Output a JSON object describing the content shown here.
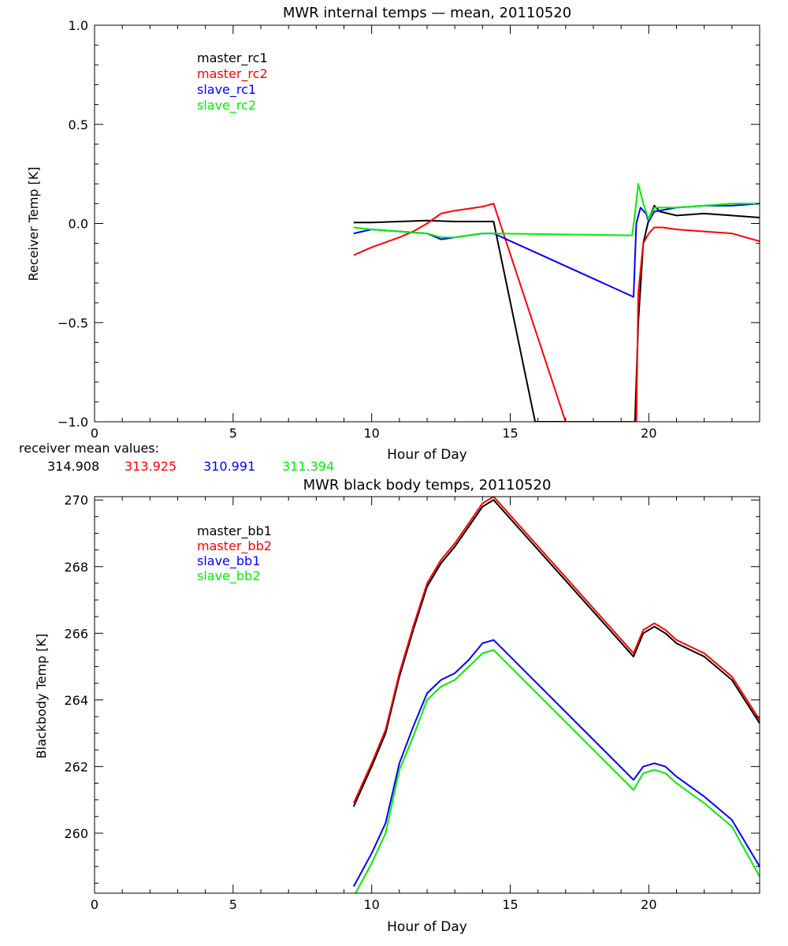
{
  "chart_data": [
    {
      "type": "line",
      "title": "MWR internal temps — mean, 20110520",
      "xlabel": "Hour of Day",
      "ylabel": "Receiver Temp [K]",
      "xlim": [
        0,
        24
      ],
      "ylim": [
        -1.0,
        1.0
      ],
      "x_ticks": [
        0,
        5,
        10,
        15,
        20
      ],
      "x_tick_labels": [
        "0",
        "5",
        "10",
        "15",
        "20"
      ],
      "y_ticks": [
        -1.0,
        -0.5,
        0.0,
        0.5,
        1.0
      ],
      "y_tick_labels": [
        "−1.0",
        "−0.5",
        "0.0",
        "0.5",
        "1.0"
      ],
      "grid": false,
      "legend_position": "top-left",
      "series": [
        {
          "name": "master_rc1",
          "color": "#000000",
          "x": [
            9.35,
            10.0,
            11.0,
            12.0,
            13.0,
            14.0,
            14.4,
            15.9,
            19.5,
            19.62,
            19.8,
            20.0,
            20.2,
            20.4,
            21.0,
            22.0,
            23.0,
            24.0
          ],
          "y": [
            0.005,
            0.005,
            0.01,
            0.015,
            0.01,
            0.01,
            0.01,
            -1.0,
            -1.0,
            -0.5,
            -0.1,
            0.02,
            0.09,
            0.06,
            0.04,
            0.05,
            0.04,
            0.03
          ]
        },
        {
          "name": "master_rc2",
          "color": "#ff0000",
          "x": [
            9.35,
            10.0,
            11.0,
            11.5,
            12.0,
            12.5,
            13.0,
            14.0,
            14.4,
            17.0,
            19.55,
            19.62,
            19.8,
            20.0,
            20.2,
            20.5,
            21.0,
            22.0,
            23.0,
            24.0
          ],
          "y": [
            -0.16,
            -0.12,
            -0.07,
            -0.04,
            0.0,
            0.05,
            0.065,
            0.085,
            0.1,
            -1.0,
            -1.0,
            -0.35,
            -0.1,
            -0.05,
            -0.02,
            -0.02,
            -0.03,
            -0.04,
            -0.05,
            -0.09
          ]
        },
        {
          "name": "slave_rc1",
          "color": "#0000ff",
          "x": [
            9.35,
            10.0,
            11.0,
            12.0,
            12.5,
            13.0,
            14.0,
            14.4,
            19.45,
            19.55,
            19.7,
            19.9,
            20.0,
            20.2,
            21.0,
            22.0,
            23.0,
            24.0
          ],
          "y": [
            -0.05,
            -0.03,
            -0.04,
            -0.05,
            -0.08,
            -0.07,
            -0.05,
            -0.05,
            -0.37,
            0.0,
            0.08,
            0.05,
            0.01,
            0.06,
            0.08,
            0.09,
            0.09,
            0.1
          ]
        },
        {
          "name": "slave_rc2",
          "color": "#00ee00",
          "x": [
            9.35,
            10.0,
            11.0,
            12.0,
            12.5,
            13.0,
            14.0,
            14.4,
            19.4,
            19.5,
            19.62,
            19.8,
            20.0,
            20.2,
            21.0,
            22.0,
            23.0,
            24.0
          ],
          "y": [
            -0.02,
            -0.03,
            -0.04,
            -0.05,
            -0.07,
            -0.07,
            -0.05,
            -0.05,
            -0.06,
            0.05,
            0.2,
            0.1,
            0.02,
            0.08,
            0.08,
            0.09,
            0.1,
            0.1
          ]
        }
      ]
    },
    {
      "type": "line",
      "title": "MWR black body temps, 20110520",
      "xlabel": "Hour of Day",
      "ylabel": "Blackbody Temp [K]",
      "xlim": [
        0,
        24
      ],
      "ylim": [
        258.2,
        270.1
      ],
      "x_ticks": [
        0,
        5,
        10,
        15,
        20
      ],
      "x_tick_labels": [
        "0",
        "5",
        "10",
        "15",
        "20"
      ],
      "y_ticks": [
        260,
        262,
        264,
        266,
        268,
        270
      ],
      "y_tick_labels": [
        "260",
        "262",
        "264",
        "266",
        "268",
        "270"
      ],
      "grid": false,
      "legend_position": "top-left",
      "series": [
        {
          "name": "master_bb1",
          "color": "#000000",
          "x": [
            9.35,
            10.0,
            10.5,
            11.0,
            11.5,
            12.0,
            12.5,
            13.0,
            13.5,
            14.0,
            14.4,
            19.45,
            19.8,
            20.2,
            20.6,
            21.0,
            22.0,
            23.0,
            24.0
          ],
          "y": [
            260.8,
            262.0,
            263.0,
            264.7,
            266.1,
            267.4,
            268.1,
            268.6,
            269.2,
            269.8,
            270.0,
            265.3,
            266.0,
            266.2,
            266.0,
            265.7,
            265.3,
            264.6,
            263.3
          ]
        },
        {
          "name": "master_bb2",
          "color": "#ff0000",
          "x": [
            9.35,
            10.0,
            10.5,
            11.0,
            11.5,
            12.0,
            12.5,
            13.0,
            13.5,
            14.0,
            14.4,
            19.45,
            19.8,
            20.2,
            20.6,
            21.0,
            22.0,
            23.0,
            24.0
          ],
          "y": [
            260.9,
            262.1,
            263.1,
            264.8,
            266.2,
            267.5,
            268.2,
            268.7,
            269.3,
            269.9,
            270.1,
            265.4,
            266.1,
            266.3,
            266.1,
            265.8,
            265.4,
            264.7,
            263.4
          ]
        },
        {
          "name": "slave_bb1",
          "color": "#0000ff",
          "x": [
            9.35,
            10.0,
            10.5,
            11.0,
            11.5,
            12.0,
            12.5,
            13.0,
            13.5,
            14.0,
            14.4,
            19.45,
            19.8,
            20.2,
            20.6,
            21.0,
            22.0,
            23.0,
            24.0
          ],
          "y": [
            258.4,
            259.4,
            260.3,
            262.1,
            263.2,
            264.2,
            264.6,
            264.8,
            265.2,
            265.7,
            265.8,
            261.6,
            262.0,
            262.1,
            262.0,
            261.7,
            261.1,
            260.4,
            259.0
          ]
        },
        {
          "name": "slave_bb2",
          "color": "#00ee00",
          "x": [
            9.35,
            10.0,
            10.5,
            11.0,
            11.5,
            12.0,
            12.5,
            13.0,
            13.5,
            14.0,
            14.4,
            19.45,
            19.8,
            20.2,
            20.6,
            21.0,
            22.0,
            23.0,
            24.0
          ],
          "y": [
            258.1,
            259.1,
            260.0,
            261.9,
            262.9,
            264.0,
            264.4,
            264.6,
            265.0,
            265.4,
            265.5,
            261.3,
            261.8,
            261.9,
            261.8,
            261.5,
            260.9,
            260.2,
            258.7
          ]
        }
      ]
    }
  ],
  "receiver_means": {
    "label": "receiver mean values:",
    "values": [
      {
        "text": "314.908",
        "color": "#000000"
      },
      {
        "text": "313.925",
        "color": "#ff0000"
      },
      {
        "text": "310.991",
        "color": "#0000ff"
      },
      {
        "text": "311.394",
        "color": "#00ee00"
      }
    ]
  }
}
